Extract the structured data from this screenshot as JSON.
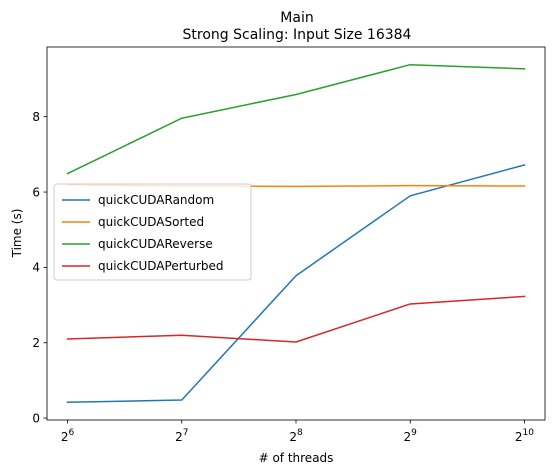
{
  "chart_data": {
    "type": "line",
    "title": "Main",
    "subtitle": "Strong Scaling: Input Size 16384",
    "xlabel": "# of threads",
    "ylabel": "Time (s)",
    "x_scale": "log2",
    "x": [
      64,
      128,
      256,
      512,
      1024
    ],
    "x_tick_labels": [
      {
        "base": "2",
        "exp": "6"
      },
      {
        "base": "2",
        "exp": "7"
      },
      {
        "base": "2",
        "exp": "8"
      },
      {
        "base": "2",
        "exp": "9"
      },
      {
        "base": "2",
        "exp": "10"
      }
    ],
    "y_ticks": [
      0,
      2,
      4,
      6,
      8
    ],
    "ylim": [
      -0.05,
      9.85
    ],
    "grid": false,
    "legend_position": "center-left",
    "series": [
      {
        "name": "quickCUDARandom",
        "color": "#1f77b4",
        "values": [
          0.42,
          0.48,
          3.78,
          5.9,
          6.72
        ]
      },
      {
        "name": "quickCUDASorted",
        "color": "#ff7f0e",
        "values": [
          6.19,
          6.16,
          6.15,
          6.17,
          6.16
        ]
      },
      {
        "name": "quickCUDAReverse",
        "color": "#2ca02c",
        "values": [
          6.49,
          7.96,
          8.59,
          9.38,
          9.27
        ]
      },
      {
        "name": "quickCUDAPerturbed",
        "color": "#d62728",
        "values": [
          2.1,
          2.2,
          2.02,
          3.03,
          3.23
        ]
      }
    ]
  }
}
